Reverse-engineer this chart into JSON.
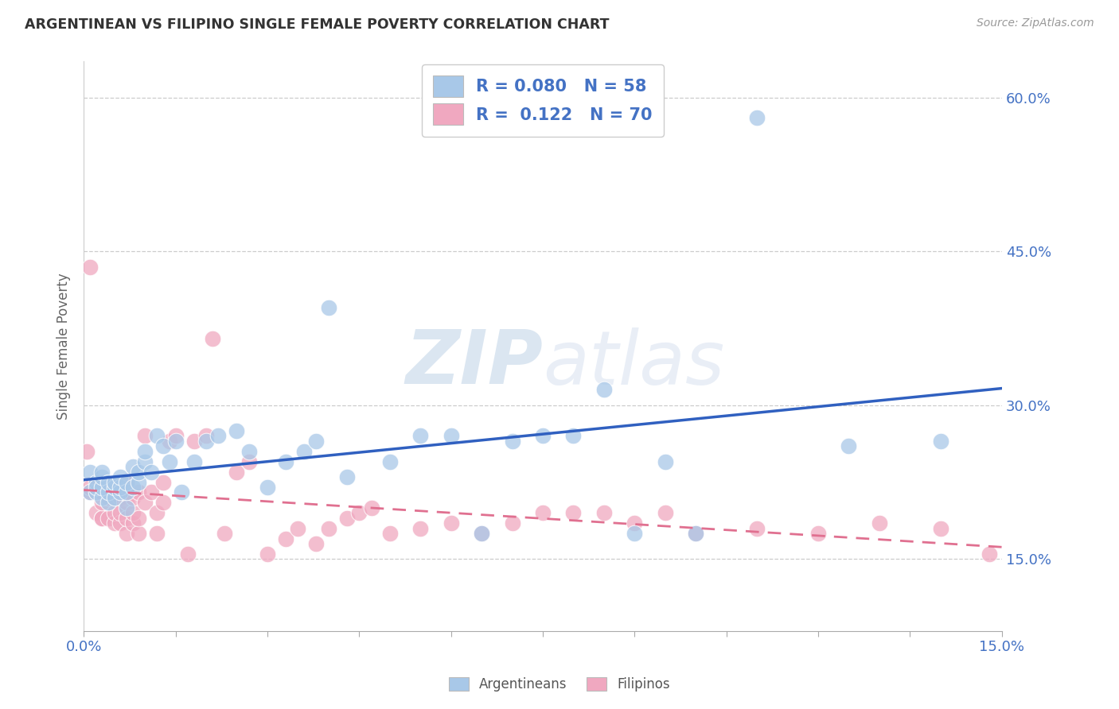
{
  "title": "ARGENTINEAN VS FILIPINO SINGLE FEMALE POVERTY CORRELATION CHART",
  "source": "Source: ZipAtlas.com",
  "ylabel": "Single Female Poverty",
  "xlim": [
    0.0,
    0.15
  ],
  "ylim": [
    0.08,
    0.635
  ],
  "ytick_labels": [
    "15.0%",
    "30.0%",
    "45.0%",
    "60.0%"
  ],
  "ytick_values": [
    0.15,
    0.3,
    0.45,
    0.6
  ],
  "argentinean_R": 0.08,
  "argentinean_N": 58,
  "filipino_R": 0.122,
  "filipino_N": 70,
  "blue_color": "#a8c8e8",
  "pink_color": "#f0a8c0",
  "blue_line_color": "#3060c0",
  "pink_line_color": "#e07090",
  "watermark_zip": "ZIP",
  "watermark_atlas": "atlas",
  "argentinean_x": [
    0.001,
    0.001,
    0.002,
    0.002,
    0.002,
    0.003,
    0.003,
    0.003,
    0.003,
    0.004,
    0.004,
    0.004,
    0.005,
    0.005,
    0.005,
    0.006,
    0.006,
    0.006,
    0.007,
    0.007,
    0.007,
    0.008,
    0.008,
    0.009,
    0.009,
    0.01,
    0.01,
    0.011,
    0.012,
    0.013,
    0.014,
    0.015,
    0.016,
    0.018,
    0.02,
    0.022,
    0.025,
    0.027,
    0.03,
    0.033,
    0.036,
    0.038,
    0.04,
    0.043,
    0.05,
    0.055,
    0.06,
    0.065,
    0.07,
    0.075,
    0.08,
    0.085,
    0.09,
    0.095,
    0.1,
    0.11,
    0.125,
    0.14
  ],
  "argentinean_y": [
    0.235,
    0.215,
    0.215,
    0.225,
    0.22,
    0.21,
    0.22,
    0.23,
    0.235,
    0.205,
    0.215,
    0.225,
    0.21,
    0.22,
    0.225,
    0.215,
    0.22,
    0.23,
    0.2,
    0.215,
    0.225,
    0.22,
    0.24,
    0.225,
    0.235,
    0.245,
    0.255,
    0.235,
    0.27,
    0.26,
    0.245,
    0.265,
    0.215,
    0.245,
    0.265,
    0.27,
    0.275,
    0.255,
    0.22,
    0.245,
    0.255,
    0.265,
    0.395,
    0.23,
    0.245,
    0.27,
    0.27,
    0.175,
    0.265,
    0.27,
    0.27,
    0.315,
    0.175,
    0.245,
    0.175,
    0.58,
    0.26,
    0.265
  ],
  "filipino_x": [
    0.0005,
    0.001,
    0.001,
    0.001,
    0.002,
    0.002,
    0.002,
    0.003,
    0.003,
    0.003,
    0.003,
    0.004,
    0.004,
    0.004,
    0.005,
    0.005,
    0.005,
    0.006,
    0.006,
    0.006,
    0.007,
    0.007,
    0.007,
    0.007,
    0.008,
    0.008,
    0.008,
    0.009,
    0.009,
    0.009,
    0.01,
    0.01,
    0.011,
    0.012,
    0.012,
    0.013,
    0.013,
    0.014,
    0.015,
    0.017,
    0.018,
    0.02,
    0.021,
    0.023,
    0.025,
    0.027,
    0.03,
    0.033,
    0.035,
    0.038,
    0.04,
    0.043,
    0.045,
    0.047,
    0.05,
    0.055,
    0.06,
    0.065,
    0.07,
    0.075,
    0.08,
    0.085,
    0.09,
    0.095,
    0.1,
    0.11,
    0.12,
    0.13,
    0.14,
    0.148
  ],
  "filipino_y": [
    0.255,
    0.215,
    0.22,
    0.435,
    0.195,
    0.215,
    0.22,
    0.19,
    0.19,
    0.205,
    0.215,
    0.19,
    0.21,
    0.215,
    0.185,
    0.195,
    0.21,
    0.185,
    0.195,
    0.21,
    0.175,
    0.19,
    0.205,
    0.225,
    0.185,
    0.195,
    0.21,
    0.175,
    0.19,
    0.215,
    0.205,
    0.27,
    0.215,
    0.175,
    0.195,
    0.205,
    0.225,
    0.265,
    0.27,
    0.155,
    0.265,
    0.27,
    0.365,
    0.175,
    0.235,
    0.245,
    0.155,
    0.17,
    0.18,
    0.165,
    0.18,
    0.19,
    0.195,
    0.2,
    0.175,
    0.18,
    0.185,
    0.175,
    0.185,
    0.195,
    0.195,
    0.195,
    0.185,
    0.195,
    0.175,
    0.18,
    0.175,
    0.185,
    0.18,
    0.155
  ]
}
